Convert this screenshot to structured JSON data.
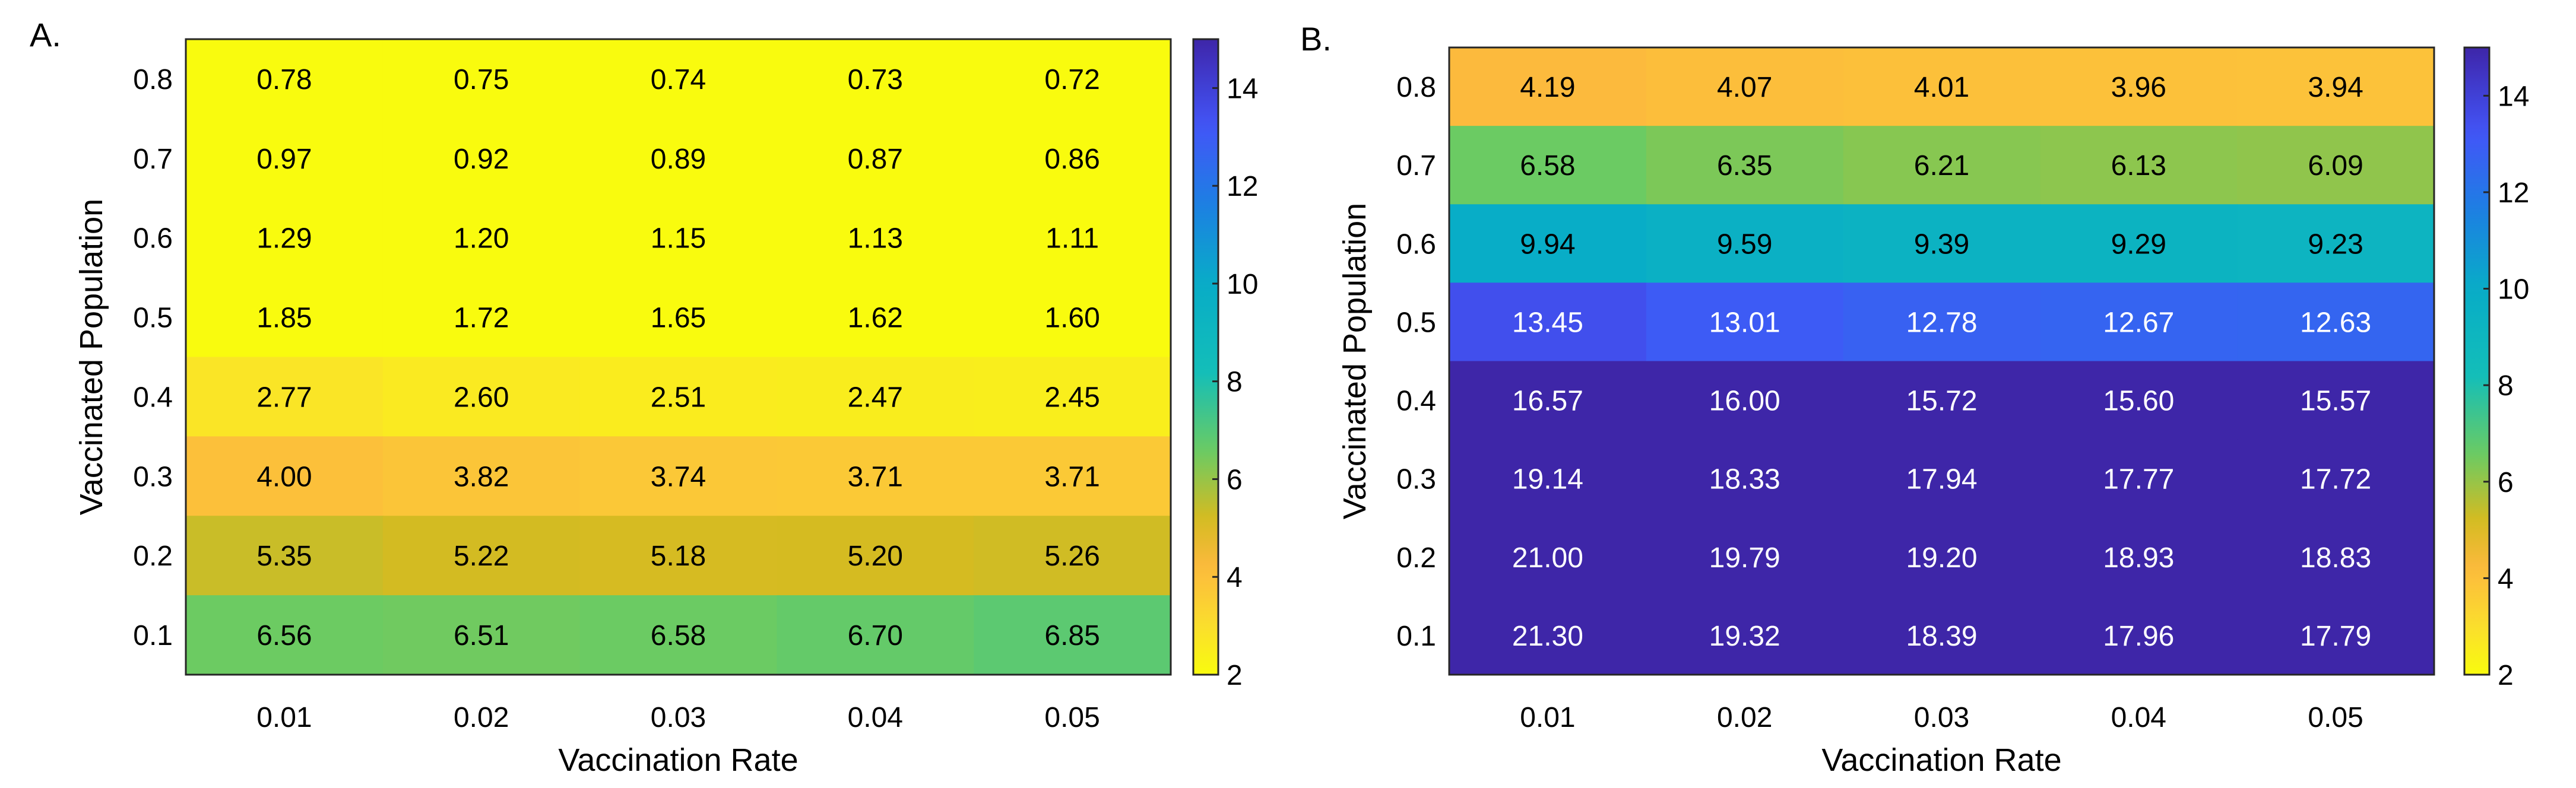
{
  "chart_data": [
    {
      "type": "heatmap",
      "panel_label": "A.",
      "xlabel": "Vaccination Rate",
      "ylabel": "Vaccinated Population",
      "x_ticks": [
        "0.01",
        "0.02",
        "0.03",
        "0.04",
        "0.05"
      ],
      "y_ticks": [
        "0.8",
        "0.7",
        "0.6",
        "0.5",
        "0.4",
        "0.3",
        "0.2",
        "0.1"
      ],
      "values": [
        [
          0.78,
          0.75,
          0.74,
          0.73,
          0.72
        ],
        [
          0.97,
          0.92,
          0.89,
          0.87,
          0.86
        ],
        [
          1.29,
          1.2,
          1.15,
          1.13,
          1.11
        ],
        [
          1.85,
          1.72,
          1.65,
          1.62,
          1.6
        ],
        [
          2.77,
          2.6,
          2.51,
          2.47,
          2.45
        ],
        [
          4.0,
          3.82,
          3.74,
          3.71,
          3.71
        ],
        [
          5.35,
          5.22,
          5.18,
          5.2,
          5.26
        ],
        [
          6.56,
          6.51,
          6.58,
          6.7,
          6.85
        ]
      ],
      "labels": [
        [
          "0.78",
          "0.75",
          "0.74",
          "0.73",
          "0.72"
        ],
        [
          "0.97",
          "0.92",
          "0.89",
          "0.87",
          "0.86"
        ],
        [
          "1.29",
          "1.20",
          "1.15",
          "1.13",
          "1.11"
        ],
        [
          "1.85",
          "1.72",
          "1.65",
          "1.62",
          "1.60"
        ],
        [
          "2.77",
          "2.60",
          "2.51",
          "2.47",
          "2.45"
        ],
        [
          "4.00",
          "3.82",
          "3.74",
          "3.71",
          "3.71"
        ],
        [
          "5.35",
          "5.22",
          "5.18",
          "5.20",
          "5.26"
        ],
        [
          "6.56",
          "6.51",
          "6.58",
          "6.70",
          "6.85"
        ]
      ],
      "clim": [
        2,
        15
      ],
      "colorbar_ticks": [
        "2",
        "4",
        "6",
        "8",
        "10",
        "12",
        "14"
      ],
      "colormap": "parula-reversed"
    },
    {
      "type": "heatmap",
      "panel_label": "B.",
      "xlabel": "Vaccination Rate",
      "ylabel": "Vaccinated Population",
      "x_ticks": [
        "0.01",
        "0.02",
        "0.03",
        "0.04",
        "0.05"
      ],
      "y_ticks": [
        "0.8",
        "0.7",
        "0.6",
        "0.5",
        "0.4",
        "0.3",
        "0.2",
        "0.1"
      ],
      "values": [
        [
          4.19,
          4.07,
          4.01,
          3.96,
          3.94
        ],
        [
          6.58,
          6.35,
          6.21,
          6.13,
          6.09
        ],
        [
          9.94,
          9.59,
          9.39,
          9.29,
          9.23
        ],
        [
          13.45,
          13.01,
          12.78,
          12.67,
          12.63
        ],
        [
          16.57,
          16.0,
          15.72,
          15.6,
          15.57
        ],
        [
          19.14,
          18.33,
          17.94,
          17.77,
          17.72
        ],
        [
          21.0,
          19.79,
          19.2,
          18.93,
          18.83
        ],
        [
          21.3,
          19.32,
          18.39,
          17.96,
          17.79
        ]
      ],
      "labels": [
        [
          "4.19",
          "4.07",
          "4.01",
          "3.96",
          "3.94"
        ],
        [
          "6.58",
          "6.35",
          "6.21",
          "6.13",
          "6.09"
        ],
        [
          "9.94",
          "9.59",
          "9.39",
          "9.29",
          "9.23"
        ],
        [
          "13.45",
          "13.01",
          "12.78",
          "12.67",
          "12.63"
        ],
        [
          "16.57",
          "16.00",
          "15.72",
          "15.60",
          "15.57"
        ],
        [
          "19.14",
          "18.33",
          "17.94",
          "17.77",
          "17.72"
        ],
        [
          "21.00",
          "19.79",
          "19.20",
          "18.93",
          "18.83"
        ],
        [
          "21.30",
          "19.32",
          "18.39",
          "17.96",
          "17.79"
        ]
      ],
      "clim": [
        2,
        15
      ],
      "colorbar_ticks": [
        "2",
        "4",
        "6",
        "8",
        "10",
        "12",
        "14"
      ],
      "colormap": "parula-reversed"
    }
  ]
}
